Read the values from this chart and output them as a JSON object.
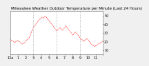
{
  "title": "Milwaukee Weather Outdoor Temperature per Minute (Last 24 Hours)",
  "background_color": "#f0f0f0",
  "plot_bg_color": "#ffffff",
  "line_color": "#ff0000",
  "grid_color": "#888888",
  "text_color": "#000000",
  "yticks": [
    10,
    20,
    30,
    40,
    50
  ],
  "ytick_labels": [
    "10",
    "20",
    "30",
    "40",
    "50"
  ],
  "ylim": [
    5,
    55
  ],
  "xlim": [
    0,
    143
  ],
  "title_fontsize": 4.0,
  "tick_fontsize": 3.5,
  "xtick_positions": [
    0,
    12,
    24,
    36,
    48,
    60,
    72,
    84,
    96,
    108,
    120,
    132,
    143
  ],
  "xtick_labels": [
    "12a",
    "1",
    "2",
    "3",
    "4",
    "5",
    "6",
    "7",
    "8",
    "9",
    "10",
    "11",
    ""
  ],
  "vline_positions": [
    36,
    72,
    108
  ],
  "x_data": [
    0,
    1,
    2,
    3,
    4,
    5,
    6,
    7,
    8,
    9,
    10,
    11,
    12,
    13,
    14,
    15,
    16,
    17,
    18,
    19,
    20,
    21,
    22,
    23,
    24,
    25,
    26,
    27,
    28,
    29,
    30,
    31,
    32,
    33,
    34,
    35,
    36,
    37,
    38,
    39,
    40,
    41,
    42,
    43,
    44,
    45,
    46,
    47,
    48,
    49,
    50,
    51,
    52,
    53,
    54,
    55,
    56,
    57,
    58,
    59,
    60,
    61,
    62,
    63,
    64,
    65,
    66,
    67,
    68,
    69,
    70,
    71,
    72,
    73,
    74,
    75,
    76,
    77,
    78,
    79,
    80,
    81,
    82,
    83,
    84,
    85,
    86,
    87,
    88,
    89,
    90,
    91,
    92,
    93,
    94,
    95,
    96,
    97,
    98,
    99,
    100,
    101,
    102,
    103,
    104,
    105,
    106,
    107,
    108,
    109,
    110,
    111,
    112,
    113,
    114,
    115,
    116,
    117,
    118,
    119,
    120,
    121,
    122,
    123,
    124,
    125,
    126,
    127,
    128,
    129,
    130,
    131,
    132,
    133,
    134,
    135,
    136,
    137,
    138,
    139,
    140,
    141,
    142,
    143
  ],
  "y_data": [
    22,
    22,
    21,
    21,
    20,
    20,
    19,
    19,
    19,
    20,
    20,
    21,
    21,
    20,
    20,
    19,
    18,
    18,
    17,
    17,
    17,
    18,
    18,
    19,
    20,
    21,
    22,
    22,
    23,
    24,
    25,
    27,
    29,
    31,
    33,
    35,
    36,
    37,
    38,
    39,
    40,
    41,
    42,
    43,
    44,
    45,
    46,
    47,
    47,
    48,
    48,
    47,
    47,
    48,
    49,
    49,
    48,
    47,
    46,
    45,
    44,
    43,
    42,
    41,
    40,
    39,
    38,
    37,
    36,
    35,
    34,
    33,
    32,
    33,
    34,
    35,
    36,
    36,
    35,
    34,
    33,
    33,
    34,
    35,
    36,
    37,
    38,
    37,
    36,
    35,
    34,
    33,
    32,
    31,
    30,
    29,
    28,
    27,
    28,
    29,
    30,
    31,
    30,
    29,
    28,
    27,
    26,
    25,
    24,
    23,
    22,
    22,
    21,
    20,
    20,
    21,
    22,
    22,
    23,
    23,
    22,
    21,
    20,
    19,
    18,
    17,
    16,
    16,
    15,
    15,
    14,
    14,
    15,
    15,
    16,
    16,
    17,
    17,
    18,
    18,
    19,
    19,
    20,
    21
  ]
}
